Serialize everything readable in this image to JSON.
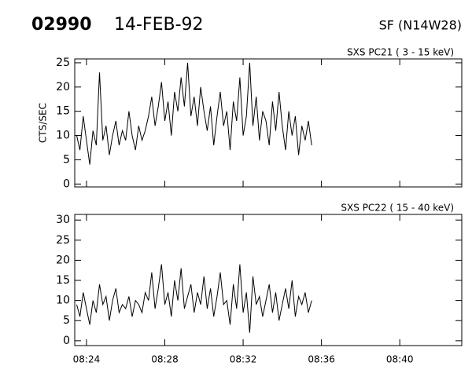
{
  "header": {
    "id": "02990",
    "date": "14-FEB-92",
    "location": "SF (N14W28)"
  },
  "chart_data": [
    {
      "type": "line",
      "title": "SXS PC21  (  3 - 15 keV)",
      "y_label": "CTS/SEC",
      "color": "#000000",
      "x": [
        "08:23:30",
        "08:23:40",
        "08:23:50",
        "08:24:00",
        "08:24:10",
        "08:24:20",
        "08:24:30",
        "08:24:40",
        "08:24:50",
        "08:25:00",
        "08:25:10",
        "08:25:20",
        "08:25:30",
        "08:25:40",
        "08:25:50",
        "08:26:00",
        "08:26:10",
        "08:26:20",
        "08:26:30",
        "08:26:40",
        "08:26:50",
        "08:27:00",
        "08:27:10",
        "08:27:20",
        "08:27:30",
        "08:27:40",
        "08:27:50",
        "08:28:00",
        "08:28:10",
        "08:28:20",
        "08:28:30",
        "08:28:40",
        "08:28:50",
        "08:29:00",
        "08:29:10",
        "08:29:20",
        "08:29:30",
        "08:29:40",
        "08:29:50",
        "08:30:00",
        "08:30:10",
        "08:30:20",
        "08:30:30",
        "08:30:40",
        "08:30:50",
        "08:31:00",
        "08:31:10",
        "08:31:20",
        "08:31:30",
        "08:31:40",
        "08:31:50",
        "08:32:00",
        "08:32:10",
        "08:32:20",
        "08:32:30",
        "08:32:40",
        "08:32:50",
        "08:33:00",
        "08:33:10",
        "08:33:20",
        "08:33:30",
        "08:33:40",
        "08:33:50",
        "08:34:00",
        "08:34:10",
        "08:34:20",
        "08:34:30",
        "08:34:40",
        "08:34:50",
        "08:35:00",
        "08:35:10",
        "08:35:20",
        "08:35:30"
      ],
      "values": [
        10,
        7,
        14,
        9,
        4,
        11,
        8,
        23,
        9,
        12,
        6,
        10,
        13,
        8,
        11,
        9,
        15,
        10,
        7,
        12,
        9,
        11,
        14,
        18,
        12,
        16,
        21,
        13,
        17,
        10,
        19,
        15,
        22,
        16,
        25,
        14,
        18,
        12,
        20,
        15,
        11,
        16,
        8,
        14,
        19,
        12,
        15,
        7,
        17,
        13,
        22,
        10,
        14,
        25,
        12,
        18,
        9,
        15,
        13,
        8,
        17,
        11,
        19,
        12,
        7,
        15,
        10,
        14,
        6,
        12,
        9,
        13,
        8
      ],
      "xlim": [
        "08:23:24",
        "08:43:10"
      ],
      "xticks": [
        "08:24",
        "08:28",
        "08:32",
        "08:36",
        "08:40"
      ],
      "ylim": [
        -0.6,
        25.8
      ],
      "yticks": [
        0,
        5,
        10,
        15,
        20,
        25
      ]
    },
    {
      "type": "line",
      "title": "SXS PC22  ( 15 - 40 keV)",
      "color": "#000000",
      "x": [
        "08:23:30",
        "08:23:40",
        "08:23:50",
        "08:24:00",
        "08:24:10",
        "08:24:20",
        "08:24:30",
        "08:24:40",
        "08:24:50",
        "08:25:00",
        "08:25:10",
        "08:25:20",
        "08:25:30",
        "08:25:40",
        "08:25:50",
        "08:26:00",
        "08:26:10",
        "08:26:20",
        "08:26:30",
        "08:26:40",
        "08:26:50",
        "08:27:00",
        "08:27:10",
        "08:27:20",
        "08:27:30",
        "08:27:40",
        "08:27:50",
        "08:28:00",
        "08:28:10",
        "08:28:20",
        "08:28:30",
        "08:28:40",
        "08:28:50",
        "08:29:00",
        "08:29:10",
        "08:29:20",
        "08:29:30",
        "08:29:40",
        "08:29:50",
        "08:30:00",
        "08:30:10",
        "08:30:20",
        "08:30:30",
        "08:30:40",
        "08:30:50",
        "08:31:00",
        "08:31:10",
        "08:31:20",
        "08:31:30",
        "08:31:40",
        "08:31:50",
        "08:32:00",
        "08:32:10",
        "08:32:20",
        "08:32:30",
        "08:32:40",
        "08:32:50",
        "08:33:00",
        "08:33:10",
        "08:33:20",
        "08:33:30",
        "08:33:40",
        "08:33:50",
        "08:34:00",
        "08:34:10",
        "08:34:20",
        "08:34:30",
        "08:34:40",
        "08:34:50",
        "08:35:00",
        "08:35:10",
        "08:35:20",
        "08:35:30"
      ],
      "values": [
        9,
        6,
        12,
        8,
        4,
        10,
        7,
        14,
        9,
        11,
        5,
        10,
        13,
        7,
        9,
        8,
        11,
        6,
        10,
        9,
        7,
        12,
        10,
        17,
        8,
        13,
        19,
        9,
        12,
        6,
        15,
        10,
        18,
        8,
        11,
        14,
        7,
        12,
        9,
        16,
        8,
        13,
        6,
        11,
        17,
        9,
        10,
        4,
        14,
        8,
        19,
        7,
        12,
        2,
        16,
        9,
        11,
        6,
        10,
        14,
        7,
        12,
        5,
        9,
        13,
        8,
        15,
        6,
        11,
        9,
        12,
        7,
        10
      ],
      "xlim": [
        "08:23:24",
        "08:43:10"
      ],
      "xticks": [
        "08:24",
        "08:28",
        "08:32",
        "08:36",
        "08:40"
      ],
      "ylim": [
        -1.2,
        31.4
      ],
      "yticks": [
        0,
        5,
        10,
        15,
        20,
        25,
        30
      ]
    }
  ]
}
